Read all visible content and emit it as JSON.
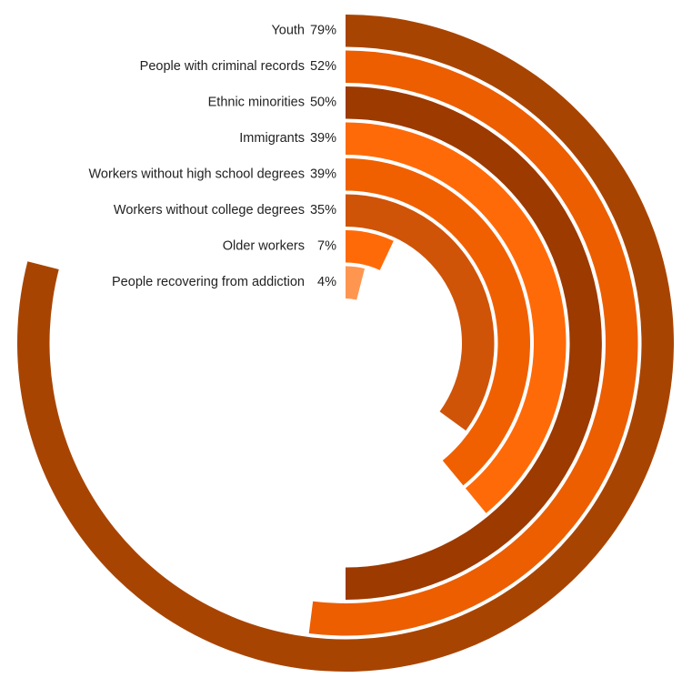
{
  "chart_data": {
    "type": "radial-bar",
    "title": "",
    "value_unit": "%",
    "value_max": 100,
    "categories": [
      "Youth",
      "People with criminal records",
      "Ethnic minorities",
      "Immigrants",
      "Workers without high school degrees",
      "Workers without college degrees",
      "Older workers",
      "People recovering from addiction"
    ],
    "values": [
      79,
      52,
      50,
      39,
      39,
      35,
      7,
      4
    ],
    "value_labels": [
      "79%",
      "52%",
      "50%",
      "39%",
      "39%",
      "35%",
      "7%",
      "4%"
    ],
    "colors": [
      "#a84402",
      "#ec5e00",
      "#9c3a00",
      "#ff6a08",
      "#f06000",
      "#cf5408",
      "#ff6a08",
      "#ff9650"
    ],
    "grid": false,
    "legend": "none"
  }
}
